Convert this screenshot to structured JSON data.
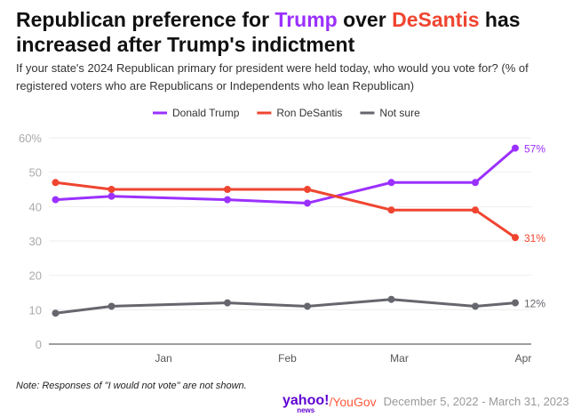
{
  "title": {
    "part1": "Republican preference for ",
    "trump": "Trump",
    "part2": " over ",
    "desantis": "DeSantis",
    "part3": " has increased after Trump's indictment"
  },
  "subtitle": "If your state's 2024 Republican primary for president were held today, who would you vote for? (% of registered voters who are Republicans or Independents who lean Republican)",
  "note": "Note: Responses of \"I would not vote\" are not shown.",
  "footer": {
    "brand": "yahoo!",
    "brand_sub": "news",
    "partner": "/YouGov",
    "dates": "December 5, 2022 - March 31, 2023"
  },
  "chart_data": {
    "type": "line",
    "x": [
      "2022-12-05",
      "2022-12-19",
      "2023-01-17",
      "2023-02-06",
      "2023-02-27",
      "2023-03-20",
      "2023-03-30"
    ],
    "series": [
      {
        "name": "Donald Trump",
        "color": "#9b30ff",
        "values": [
          42,
          43,
          42,
          41,
          47,
          47,
          57
        ],
        "end_label": "57%"
      },
      {
        "name": "Ron DeSantis",
        "color": "#ef4530",
        "values": [
          47,
          45,
          45,
          45,
          39,
          39,
          31
        ],
        "end_label": "31%"
      },
      {
        "name": "Not sure",
        "color": "#66666e",
        "values": [
          9,
          11,
          12,
          11,
          13,
          11,
          12
        ],
        "end_label": "12%"
      }
    ],
    "ylim": [
      0,
      60
    ],
    "yticks": [
      "0",
      "10",
      "20",
      "30",
      "40",
      "50",
      "60%"
    ],
    "xticks": [
      {
        "date": "2023-01-01",
        "label": "Jan"
      },
      {
        "date": "2023-02-01",
        "label": "Feb"
      },
      {
        "date": "2023-03-01",
        "label": "Mar"
      },
      {
        "date": "2023-04-01",
        "label": "Apr"
      }
    ],
    "legend": "top-center",
    "grid": true
  }
}
